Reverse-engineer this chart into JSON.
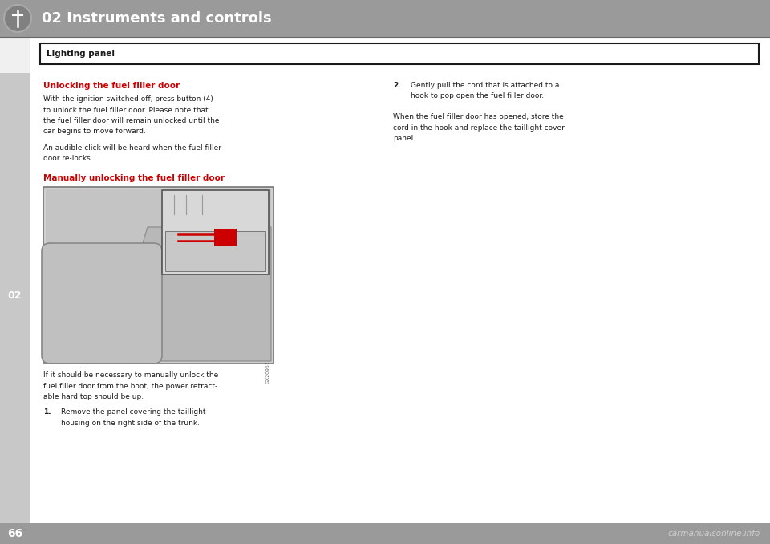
{
  "bg_color": "#f0f0f0",
  "page_bg": "#ffffff",
  "header_bg": "#9a9a9a",
  "header_text": "02 Instruments and controls",
  "header_text_color": "#ffffff",
  "side_bar_color": "#c8c8c8",
  "side_bar_text": "02",
  "bottom_bar_color": "#9a9a9a",
  "bottom_page_num": "66",
  "section_box_text": "Lighting panel",
  "section_box_bg": "#ffffff",
  "section_box_border": "#1a1a1a",
  "watermark_text": "carmanualsonline.info",
  "title1": "Unlocking the fuel filler door",
  "title1_color": "#cc0000",
  "body1_lines": [
    "With the ignition switched off, press button (4)",
    "to unlock the fuel filler door. Please note that",
    "the fuel filler door will remain unlocked until the",
    "car begins to move forward.",
    "",
    "An audible click will be heard when the fuel filler",
    "door re-locks."
  ],
  "title2": "Manually unlocking the fuel filler door",
  "title2_color": "#cc0000",
  "body2_lines": [
    "If it should be necessary to manually unlock the",
    "fuel filler door from the boot, the power retract-",
    "able hard top should be up."
  ],
  "step1_lines": [
    "Remove the panel covering the taillight",
    "housing on the right side of the trunk."
  ],
  "step2_lines": [
    "Gently pull the cord that is attached to a",
    "hook to pop open the fuel filler door."
  ],
  "body_right_lines": [
    "When the fuel filler door has opened, store the",
    "cord in the hook and replace the taillight cover",
    "panel."
  ],
  "font_color": "#1a1a1a",
  "image_bg": "#d0d0d0",
  "image_border_color": "#777777",
  "image_code": "GX20951"
}
